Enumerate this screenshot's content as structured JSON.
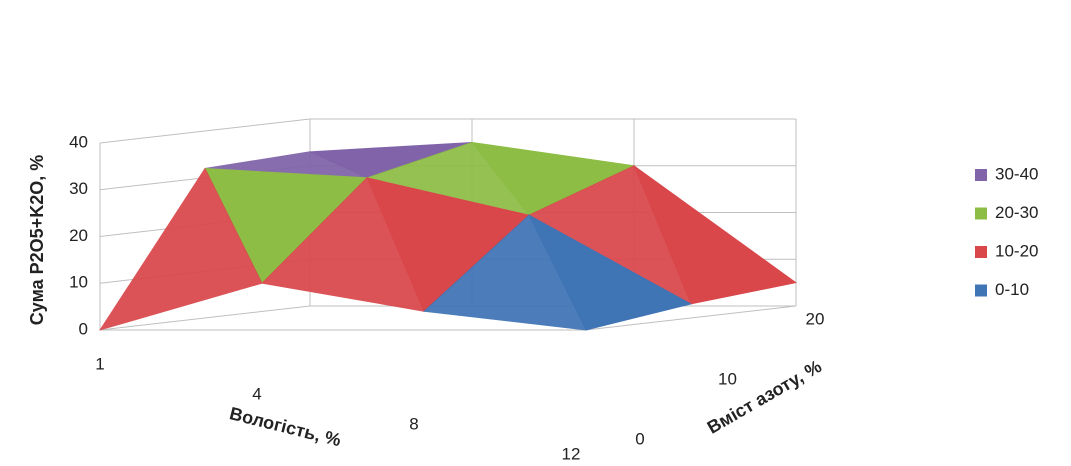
{
  "chart_data": {
    "type": "surface",
    "x_title": "Вологість, %",
    "y_title": "Вміст азоту, %",
    "z_title": "Сума P2O5+K2O, %",
    "categories": [
      "1",
      "4",
      "8",
      "12"
    ],
    "depth_categories": [
      "0",
      "10",
      "20"
    ],
    "z": [
      [
        33,
        35,
        30,
        5
      ],
      [
        32,
        30,
        22,
        3
      ],
      [
        0,
        10,
        4,
        0
      ]
    ],
    "zlim": [
      0,
      40
    ],
    "zticks": [
      0,
      10,
      20,
      30,
      40
    ],
    "legend": [
      {
        "label": "30-40",
        "color": "#8063a8"
      },
      {
        "label": "20-30",
        "color": "#8dbd45"
      },
      {
        "label": "10-20",
        "color": "#d9474b"
      },
      {
        "label": "0-10",
        "color": "#3f74b5"
      }
    ]
  }
}
